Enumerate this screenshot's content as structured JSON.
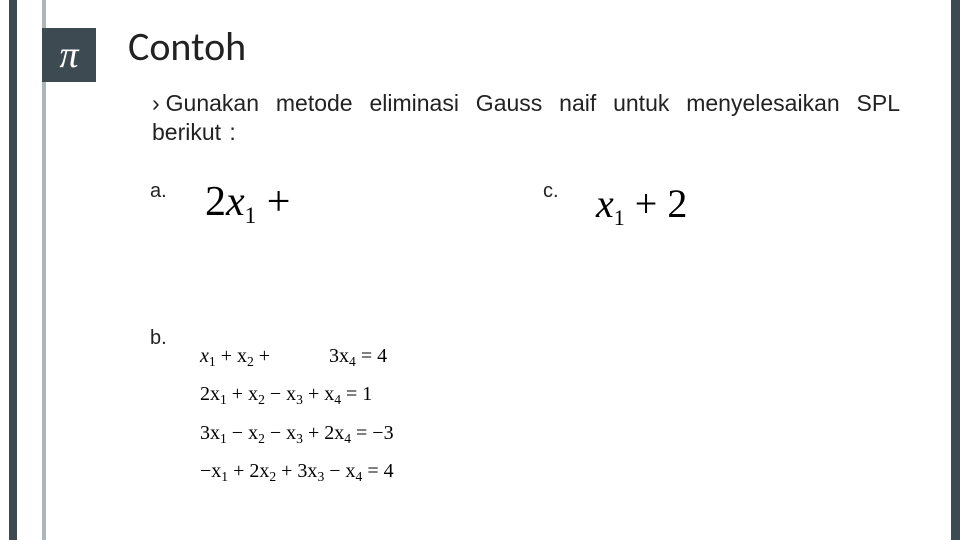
{
  "pi_symbol": "π",
  "title": "Contoh",
  "prompt_chevron": "›",
  "prompt": "Gunakan metode eliminasi Gauss naif untuk menyelesaikan SPL berikut :",
  "label_a": "a.",
  "label_b": "b.",
  "label_c": "c.",
  "eq_a_parts": {
    "coef1": "2",
    "var1": "x",
    "sub1": "1",
    "op": " + "
  },
  "eq_c_parts": {
    "var1": "x",
    "sub1": "1",
    "op": " + 2"
  },
  "eq_b": {
    "r1": {
      "t1": "x",
      "s1": "1",
      "t2": " + x",
      "s2": "2",
      "t3": " + ",
      "gap": true,
      "t4": "3x",
      "s4": "4",
      "t5": " = 4"
    },
    "r2": {
      "t1": "2x",
      "s1": "1",
      "t2": " + x",
      "s2": "2",
      "t3": " − x",
      "s3": "3",
      "t4": " + x",
      "s4": "4",
      "t5": " = 1"
    },
    "r3": {
      "t1": "3x",
      "s1": "1",
      "t2": " − x",
      "s2": "2",
      "t3": " − x",
      "s3": "3",
      "t4": " + 2x",
      "s4": "4",
      "t5": " = −3"
    },
    "r4": {
      "t1": "−x",
      "s1": "1",
      "t2": " + 2x",
      "s2": "2",
      "t3": " + 3x",
      "s3": "3",
      "t4": " − x",
      "s4": "4",
      "t5": " = 4"
    }
  },
  "colors": {
    "dark": "#3d4a52",
    "light_rail": "#aab7bd",
    "bg": "#ffffff",
    "text": "#222222"
  }
}
